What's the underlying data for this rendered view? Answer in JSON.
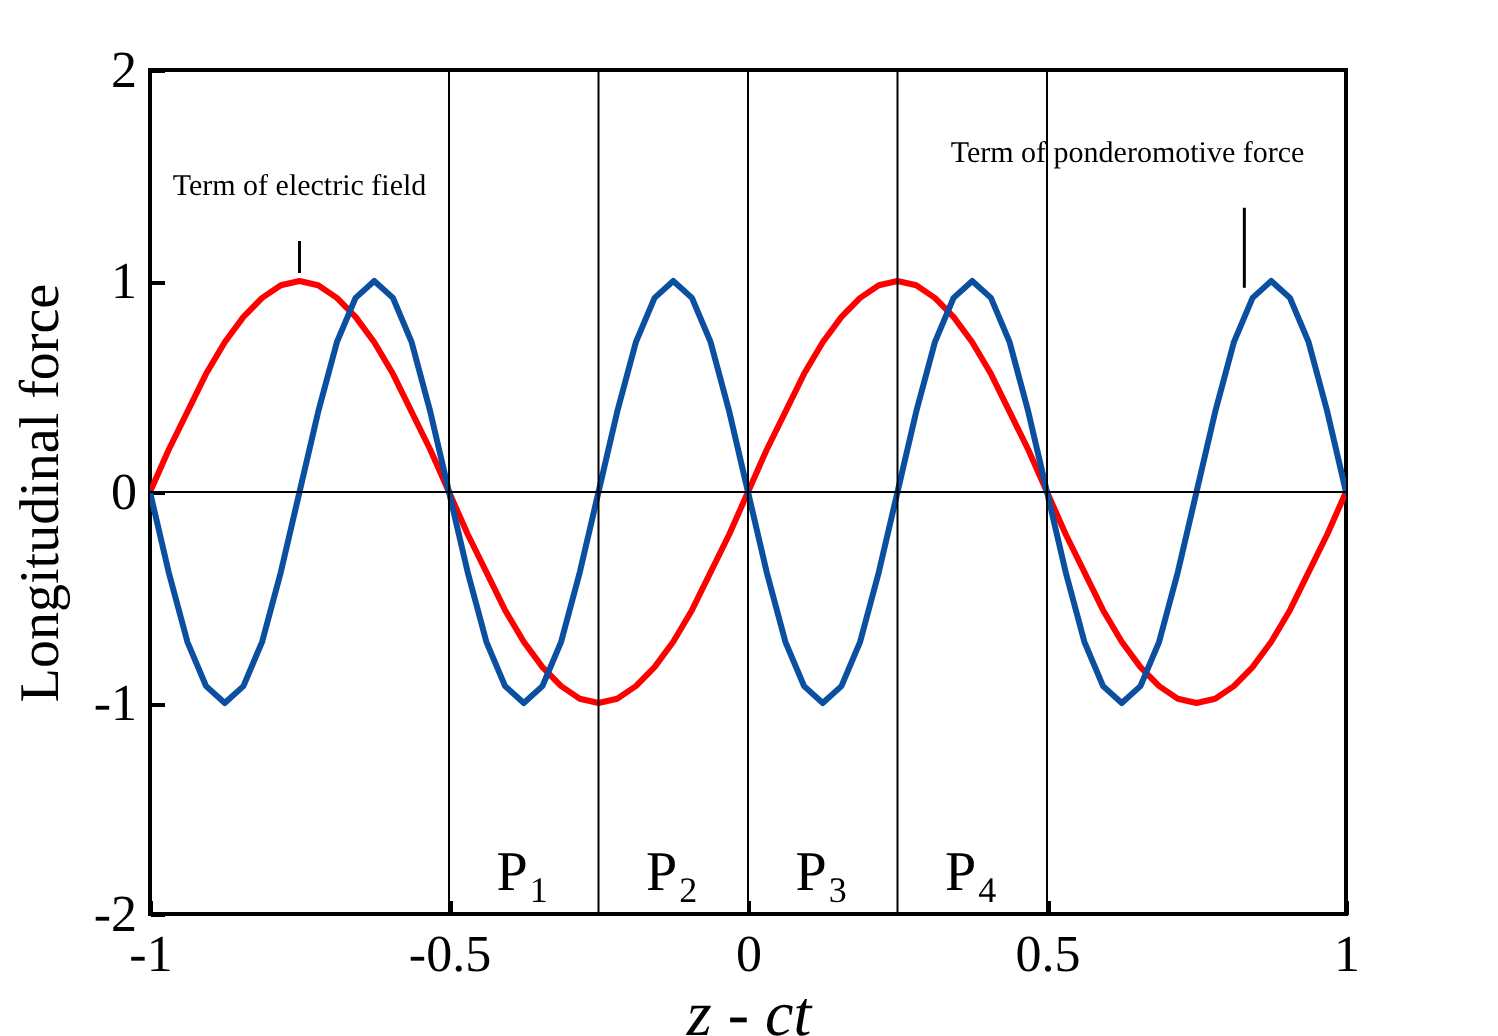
{
  "chart_data": {
    "type": "line",
    "xlabel": "z - ct",
    "ylabel": "Longitudinal force",
    "x": [
      -1,
      -0.96875,
      -0.9375,
      -0.90625,
      -0.875,
      -0.84375,
      -0.8125,
      -0.78125,
      -0.75,
      -0.71875,
      -0.6875,
      -0.65625,
      -0.625,
      -0.59375,
      -0.5625,
      -0.53125,
      -0.5,
      -0.46875,
      -0.4375,
      -0.40625,
      -0.375,
      -0.34375,
      -0.3125,
      -0.28125,
      -0.25,
      -0.21875,
      -0.1875,
      -0.15625,
      -0.125,
      -0.09375,
      -0.0625,
      -0.03125,
      0,
      0.03125,
      0.0625,
      0.09375,
      0.125,
      0.15625,
      0.1875,
      0.21875,
      0.25,
      0.28125,
      0.3125,
      0.34375,
      0.375,
      0.40625,
      0.4375,
      0.46875,
      0.5,
      0.53125,
      0.5625,
      0.59375,
      0.625,
      0.65625,
      0.6875,
      0.71875,
      0.75,
      0.78125,
      0.8125,
      0.84375,
      0.875,
      0.90625,
      0.9375,
      0.96875,
      1
    ],
    "series": [
      {
        "color": "#ff0000",
        "values": [
          0,
          0.2,
          0.38,
          0.56,
          0.71,
          0.83,
          0.92,
          0.98,
          1,
          0.98,
          0.92,
          0.83,
          0.71,
          0.56,
          0.38,
          0.2,
          0,
          -0.2,
          -0.38,
          -0.56,
          -0.71,
          -0.83,
          -0.92,
          -0.98,
          -1,
          -0.98,
          -0.92,
          -0.83,
          -0.71,
          -0.56,
          -0.38,
          -0.2,
          0,
          0.2,
          0.38,
          0.56,
          0.71,
          0.83,
          0.92,
          0.98,
          1,
          0.98,
          0.92,
          0.83,
          0.71,
          0.56,
          0.38,
          0.2,
          0,
          -0.2,
          -0.38,
          -0.56,
          -0.71,
          -0.83,
          -0.92,
          -0.98,
          -1,
          -0.98,
          -0.92,
          -0.83,
          -0.71,
          -0.56,
          -0.38,
          -0.2,
          0
        ]
      },
      {
        "color": "#0a4fa0",
        "values": [
          0,
          -0.38,
          -0.71,
          -0.92,
          -1,
          -0.92,
          -0.71,
          -0.38,
          0,
          0.38,
          0.71,
          0.92,
          1,
          0.92,
          0.71,
          0.38,
          0,
          -0.38,
          -0.71,
          -0.92,
          -1,
          -0.92,
          -0.71,
          -0.38,
          0,
          0.38,
          0.71,
          0.92,
          1,
          0.92,
          0.71,
          0.38,
          0,
          -0.38,
          -0.71,
          -0.92,
          -1,
          -0.92,
          -0.71,
          -0.38,
          0,
          0.38,
          0.71,
          0.92,
          1,
          0.92,
          0.71,
          0.38,
          0,
          -0.38,
          -0.71,
          -0.92,
          -1,
          -0.92,
          -0.71,
          -0.38,
          0,
          0.38,
          0.71,
          0.92,
          1,
          0.92,
          0.71,
          0.38,
          0
        ]
      }
    ],
    "xlim": [
      -1,
      1
    ],
    "xticks": [
      -1,
      -0.5,
      0,
      0.5,
      1
    ],
    "ylim": [
      -2,
      2
    ],
    "yticks": [
      -2,
      -1,
      0,
      1,
      2
    ],
    "ref_lines": [
      {
        "axis": "y",
        "value": 0
      },
      {
        "axis": "x",
        "value": -0.5
      },
      {
        "axis": "x",
        "value": -0.25
      },
      {
        "axis": "x",
        "value": 0
      },
      {
        "axis": "x",
        "value": 0.25
      },
      {
        "axis": "x",
        "value": 0.5
      }
    ],
    "annotations": [
      {
        "text": "Term of electric field",
        "x": -0.75,
        "y": 1
      },
      {
        "text": "Term of ponderomotive force",
        "x": 0.83,
        "y": 0.93
      },
      "P$_{1}$",
      "P$_{2}$",
      "P$_{3}$",
      "P$_{4}$"
    ],
    "legend": false
  }
}
